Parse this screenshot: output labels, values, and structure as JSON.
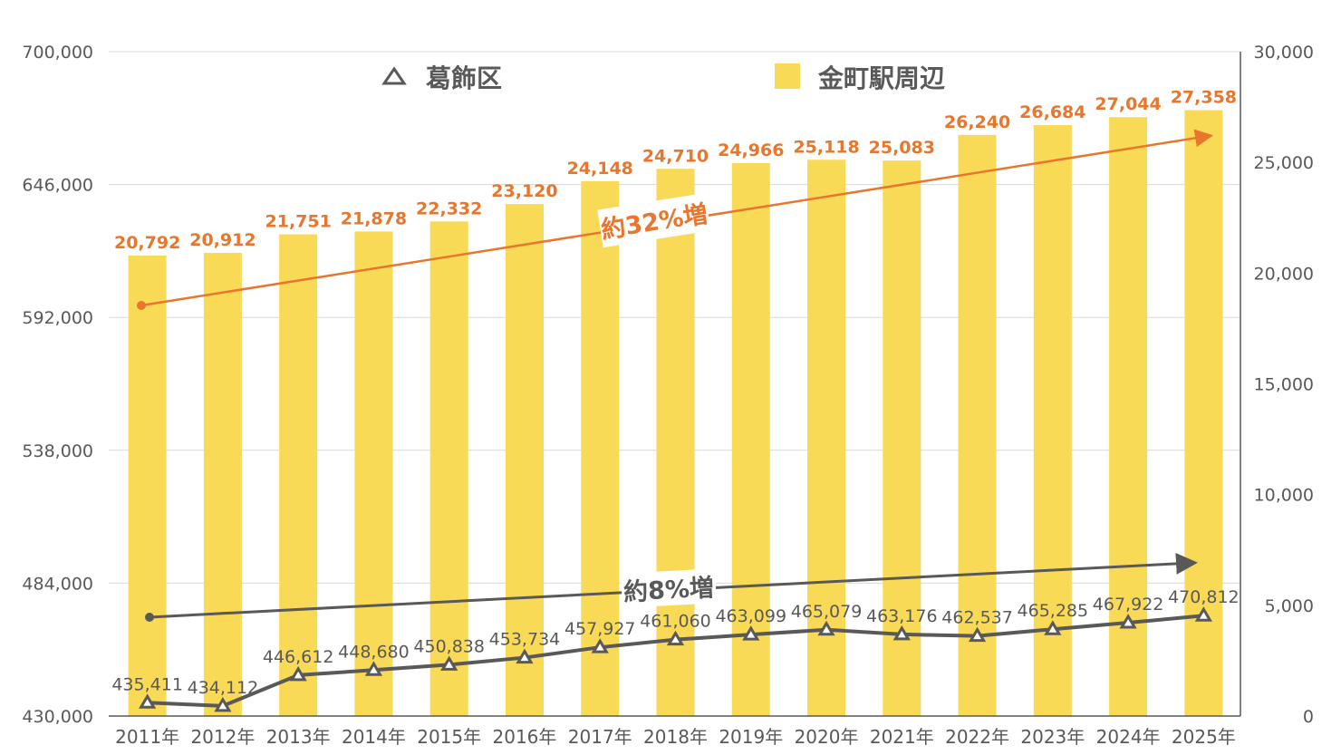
{
  "chart_data": {
    "type": "bar+line",
    "categories": [
      "2011年",
      "2012年",
      "2013年",
      "2014年",
      "2015年",
      "2016年",
      "2017年",
      "2018年",
      "2019年",
      "2020年",
      "2021年",
      "2022年",
      "2023年",
      "2024年",
      "2025年"
    ],
    "series": [
      {
        "name": "葛飾区",
        "type": "line",
        "axis": "left",
        "marker": "triangle",
        "color": "#595959",
        "values": [
          435411,
          434112,
          446612,
          448680,
          450838,
          453734,
          457927,
          461060,
          463099,
          465079,
          463176,
          462537,
          465285,
          467922,
          470812
        ],
        "labels": [
          "435,411",
          "434,112",
          "446,612",
          "448,680",
          "450,838",
          "453,734",
          "457,927",
          "461,060",
          "463,099",
          "465,079",
          "463,176",
          "462,537",
          "465,285",
          "467,922",
          "470,812"
        ]
      },
      {
        "name": "金町駅周辺",
        "type": "bar",
        "axis": "right",
        "color": "#F9DA57",
        "values": [
          20792,
          20912,
          21751,
          21878,
          22332,
          23120,
          24148,
          24710,
          24966,
          25118,
          25083,
          26240,
          26684,
          27044,
          27358
        ],
        "labels": [
          "20,792",
          "20,912",
          "21,751",
          "21,878",
          "22,332",
          "23,120",
          "24,148",
          "24,710",
          "24,966",
          "25,118",
          "25,083",
          "26,240",
          "26,684",
          "27,044",
          "27,358"
        ]
      }
    ],
    "left_axis": {
      "range": [
        430000,
        700000
      ],
      "ticks": [
        "430,000",
        "484,000",
        "538,000",
        "592,000",
        "646,000",
        "700,000"
      ]
    },
    "right_axis": {
      "range": [
        0,
        30000
      ],
      "ticks": [
        "0",
        "5,000",
        "10,000",
        "15,000",
        "20,000",
        "25,000",
        "30,000"
      ]
    },
    "grid": true,
    "legend": {
      "placement": "top",
      "entries": [
        "葛飾区",
        "金町駅周辺"
      ]
    },
    "annotations": [
      {
        "text": "約32%増",
        "color": "#E8762C"
      },
      {
        "text": "約8%増",
        "color": "#595959"
      }
    ],
    "label_color": "#E8762C"
  }
}
